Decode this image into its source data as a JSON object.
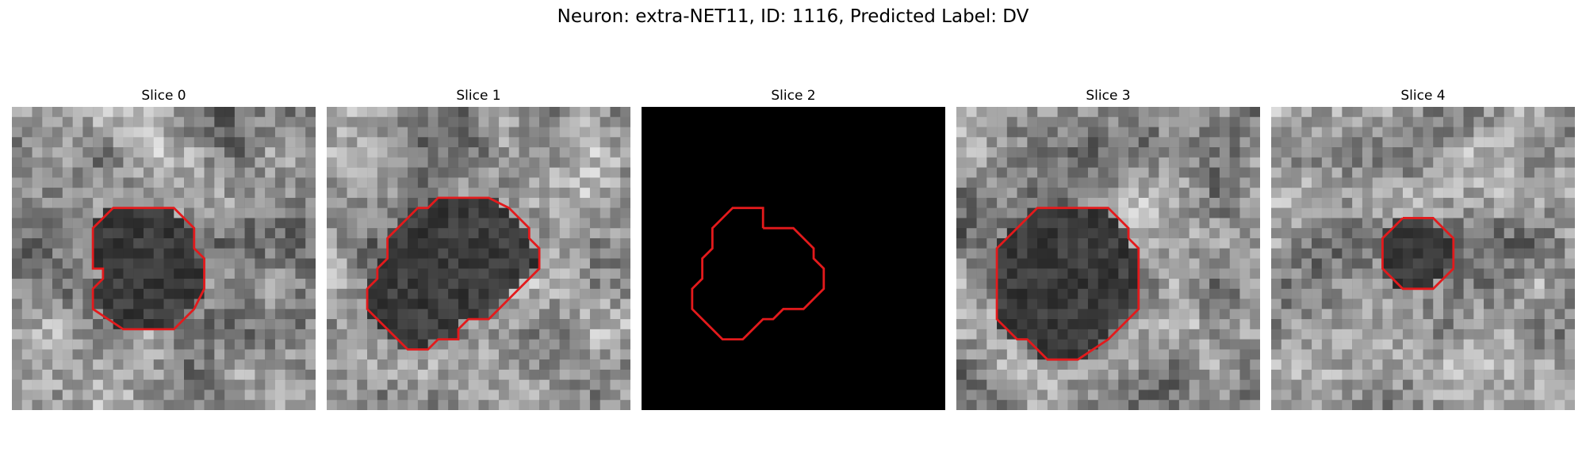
{
  "figure": {
    "title": "Neuron: extra-NET11, ID: 1116, Predicted Label: DV"
  },
  "panels": [
    {
      "title": "Slice 0",
      "image": "grayscale-microscopy-patch",
      "contour_color": "#e31a1c",
      "contour": [
        [
          13,
          10
        ],
        [
          16,
          10
        ],
        [
          18,
          12
        ],
        [
          18,
          14
        ],
        [
          19,
          15
        ],
        [
          19,
          18
        ],
        [
          18,
          20
        ],
        [
          16,
          22
        ],
        [
          11,
          22
        ],
        [
          8,
          20
        ],
        [
          8,
          18
        ],
        [
          9,
          17
        ],
        [
          9,
          16
        ],
        [
          8,
          16
        ],
        [
          8,
          12
        ],
        [
          10,
          10
        ],
        [
          11,
          10
        ],
        [
          13,
          10
        ]
      ]
    },
    {
      "title": "Slice 1",
      "image": "grayscale-microscopy-patch",
      "contour_color": "#e31a1c",
      "contour": [
        [
          13,
          9
        ],
        [
          16,
          9
        ],
        [
          18,
          10
        ],
        [
          19,
          11
        ],
        [
          20,
          12
        ],
        [
          20,
          13
        ],
        [
          21,
          14
        ],
        [
          21,
          16
        ],
        [
          20,
          17
        ],
        [
          18,
          19
        ],
        [
          17,
          20
        ],
        [
          16,
          21
        ],
        [
          14,
          21
        ],
        [
          13,
          22
        ],
        [
          13,
          23
        ],
        [
          11,
          23
        ],
        [
          10,
          24
        ],
        [
          8,
          24
        ],
        [
          5,
          21
        ],
        [
          4,
          20
        ],
        [
          4,
          18
        ],
        [
          5,
          17
        ],
        [
          5,
          16
        ],
        [
          6,
          15
        ],
        [
          6,
          13
        ],
        [
          7,
          12
        ],
        [
          8,
          11
        ],
        [
          9,
          10
        ],
        [
          10,
          10
        ],
        [
          11,
          9
        ],
        [
          13,
          9
        ]
      ]
    },
    {
      "title": "Slice 2",
      "image": "black",
      "contour_color": "#e31a1c",
      "contour": [
        [
          12,
          12
        ],
        [
          15,
          12
        ],
        [
          17,
          14
        ],
        [
          17,
          15
        ],
        [
          18,
          16
        ],
        [
          18,
          18
        ],
        [
          17,
          19
        ],
        [
          16,
          20
        ],
        [
          14,
          20
        ],
        [
          13,
          21
        ],
        [
          12,
          21
        ],
        [
          11,
          22
        ],
        [
          10,
          23
        ],
        [
          8,
          23
        ],
        [
          5,
          20
        ],
        [
          5,
          18
        ],
        [
          6,
          17
        ],
        [
          6,
          15
        ],
        [
          7,
          14
        ],
        [
          7,
          12
        ],
        [
          8,
          11
        ],
        [
          9,
          10
        ],
        [
          12,
          10
        ],
        [
          12,
          12
        ]
      ]
    },
    {
      "title": "Slice 3",
      "image": "grayscale-microscopy-patch",
      "contour_color": "#e31a1c",
      "contour": [
        [
          12,
          10
        ],
        [
          15,
          10
        ],
        [
          17,
          12
        ],
        [
          17,
          13
        ],
        [
          18,
          14
        ],
        [
          18,
          20
        ],
        [
          16,
          22
        ],
        [
          15,
          23
        ],
        [
          12,
          25
        ],
        [
          9,
          25
        ],
        [
          8,
          24
        ],
        [
          7,
          23
        ],
        [
          6,
          23
        ],
        [
          4,
          21
        ],
        [
          4,
          14
        ],
        [
          6,
          12
        ],
        [
          8,
          10
        ],
        [
          12,
          10
        ]
      ]
    },
    {
      "title": "Slice 4",
      "image": "grayscale-microscopy-patch",
      "contour_color": "#e31a1c",
      "contour": [
        [
          13,
          11
        ],
        [
          16,
          11
        ],
        [
          17,
          12
        ],
        [
          18,
          13
        ],
        [
          18,
          16
        ],
        [
          17,
          17
        ],
        [
          16,
          18
        ],
        [
          13,
          18
        ],
        [
          12,
          17
        ],
        [
          11,
          16
        ],
        [
          11,
          13
        ],
        [
          12,
          12
        ],
        [
          13,
          11
        ]
      ]
    }
  ]
}
